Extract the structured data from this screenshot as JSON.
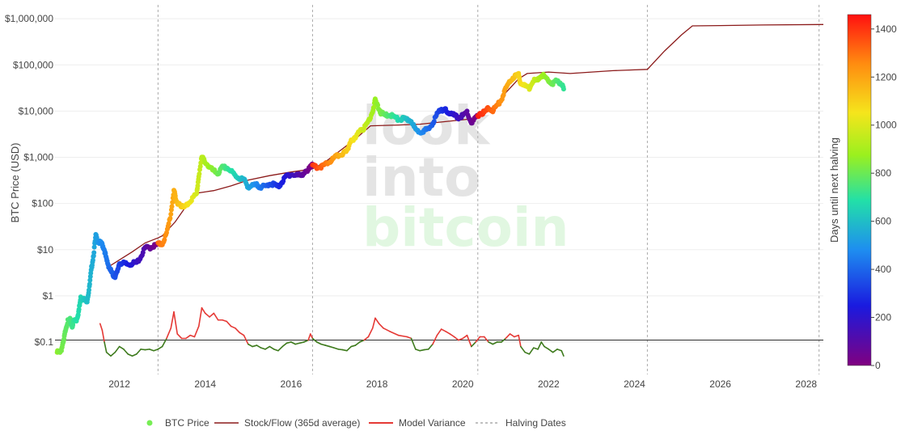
{
  "watermark": {
    "line1": "look",
    "line2": "into",
    "line3": "bitcoin"
  },
  "legend": {
    "btc_price": "BTC Price",
    "stock_flow": "Stock/Flow (365d average)",
    "model_variance": "Model Variance",
    "halving_dates": "Halving Dates"
  },
  "colorbar": {
    "title": "Days until next halving",
    "ticks": [
      "0",
      "200",
      "400",
      "600",
      "800",
      "1000",
      "1200",
      "1400"
    ]
  },
  "colors": {
    "stock_flow": "#8b1a1a",
    "variance_high": "#e53935",
    "variance_low": "#3d7a1c",
    "btc_legend": "#77ee55",
    "halving": "#aaaaaa",
    "reference_line": "#222222"
  },
  "chart_data": {
    "type": "scatter",
    "yscale": "log",
    "ylabel": "BTC Price (USD)",
    "xlim": [
      2010.5,
      2028.4
    ],
    "ylim_log10": [
      -1.7,
      6.3
    ],
    "y_ticks": [
      {
        "value": 0.1,
        "label": "$0.1"
      },
      {
        "value": 1,
        "label": "$1"
      },
      {
        "value": 10,
        "label": "$10"
      },
      {
        "value": 100,
        "label": "$100"
      },
      {
        "value": 1000,
        "label": "$1,000"
      },
      {
        "value": 10000,
        "label": "$10,000"
      },
      {
        "value": 100000,
        "label": "$100,000"
      },
      {
        "value": 1000000,
        "label": "$1,000,000"
      }
    ],
    "x_ticks": [
      {
        "value": 2012,
        "label": "2012"
      },
      {
        "value": 2014,
        "label": "2014"
      },
      {
        "value": 2016,
        "label": "2016"
      },
      {
        "value": 2018,
        "label": "2018"
      },
      {
        "value": 2020,
        "label": "2020"
      },
      {
        "value": 2022,
        "label": "2022"
      },
      {
        "value": 2024,
        "label": "2024"
      },
      {
        "value": 2026,
        "label": "2026"
      },
      {
        "value": 2028,
        "label": "2028"
      }
    ],
    "halving_dates": [
      2012.9,
      2016.5,
      2020.35,
      2024.3,
      2028.3
    ],
    "reference_level": 0.11,
    "btc_price": [
      [
        2010.55,
        0.06
      ],
      [
        2010.6,
        0.06
      ],
      [
        2010.65,
        0.07
      ],
      [
        2010.7,
        0.1
      ],
      [
        2010.75,
        0.2
      ],
      [
        2010.8,
        0.28
      ],
      [
        2010.85,
        0.3
      ],
      [
        2010.9,
        0.22
      ],
      [
        2010.95,
        0.3
      ],
      [
        2011.0,
        0.3
      ],
      [
        2011.05,
        0.45
      ],
      [
        2011.1,
        0.9
      ],
      [
        2011.15,
        0.9
      ],
      [
        2011.2,
        0.8
      ],
      [
        2011.25,
        0.8
      ],
      [
        2011.3,
        1.5
      ],
      [
        2011.35,
        4
      ],
      [
        2011.4,
        8
      ],
      [
        2011.45,
        20
      ],
      [
        2011.5,
        15
      ],
      [
        2011.55,
        14
      ],
      [
        2011.6,
        13
      ],
      [
        2011.65,
        10
      ],
      [
        2011.7,
        6
      ],
      [
        2011.75,
        4.5
      ],
      [
        2011.8,
        3.5
      ],
      [
        2011.85,
        2.8
      ],
      [
        2011.9,
        2.7
      ],
      [
        2011.95,
        3.2
      ],
      [
        2012.0,
        5.2
      ],
      [
        2012.1,
        5
      ],
      [
        2012.2,
        4.8
      ],
      [
        2012.3,
        5
      ],
      [
        2012.4,
        5.2
      ],
      [
        2012.5,
        7
      ],
      [
        2012.6,
        11
      ],
      [
        2012.7,
        11
      ],
      [
        2012.8,
        12
      ],
      [
        2012.9,
        13
      ],
      [
        2013.0,
        13.5
      ],
      [
        2013.1,
        22
      ],
      [
        2013.2,
        60
      ],
      [
        2013.27,
        200
      ],
      [
        2013.32,
        110
      ],
      [
        2013.4,
        100
      ],
      [
        2013.5,
        80
      ],
      [
        2013.6,
        100
      ],
      [
        2013.7,
        130
      ],
      [
        2013.8,
        160
      ],
      [
        2013.85,
        400
      ],
      [
        2013.92,
        1000
      ],
      [
        2014.0,
        800
      ],
      [
        2014.1,
        600
      ],
      [
        2014.2,
        500
      ],
      [
        2014.3,
        450
      ],
      [
        2014.4,
        600
      ],
      [
        2014.5,
        600
      ],
      [
        2014.6,
        500
      ],
      [
        2014.7,
        400
      ],
      [
        2014.8,
        350
      ],
      [
        2014.9,
        330
      ],
      [
        2015.0,
        230
      ],
      [
        2015.1,
        240
      ],
      [
        2015.2,
        250
      ],
      [
        2015.3,
        230
      ],
      [
        2015.4,
        230
      ],
      [
        2015.5,
        270
      ],
      [
        2015.6,
        260
      ],
      [
        2015.7,
        230
      ],
      [
        2015.8,
        300
      ],
      [
        2015.9,
        400
      ],
      [
        2016.0,
        430
      ],
      [
        2016.1,
        400
      ],
      [
        2016.2,
        420
      ],
      [
        2016.3,
        450
      ],
      [
        2016.4,
        500
      ],
      [
        2016.45,
        700
      ],
      [
        2016.5,
        650
      ],
      [
        2016.6,
        600
      ],
      [
        2016.7,
        610
      ],
      [
        2016.8,
        700
      ],
      [
        2016.9,
        800
      ],
      [
        2017.0,
        950
      ],
      [
        2017.1,
        1100
      ],
      [
        2017.2,
        1200
      ],
      [
        2017.3,
        1300
      ],
      [
        2017.4,
        2500
      ],
      [
        2017.5,
        2500
      ],
      [
        2017.6,
        4000
      ],
      [
        2017.7,
        4200
      ],
      [
        2017.8,
        6000
      ],
      [
        2017.9,
        10000
      ],
      [
        2017.96,
        17000
      ],
      [
        2018.05,
        11000
      ],
      [
        2018.1,
        9000
      ],
      [
        2018.2,
        8000
      ],
      [
        2018.3,
        8500
      ],
      [
        2018.4,
        7500
      ],
      [
        2018.5,
        6500
      ],
      [
        2018.6,
        6800
      ],
      [
        2018.7,
        6500
      ],
      [
        2018.8,
        6300
      ],
      [
        2018.9,
        3800
      ],
      [
        2019.0,
        3600
      ],
      [
        2019.1,
        3800
      ],
      [
        2019.2,
        4000
      ],
      [
        2019.3,
        5500
      ],
      [
        2019.4,
        8500
      ],
      [
        2019.5,
        11500
      ],
      [
        2019.55,
        10000
      ],
      [
        2019.6,
        10500
      ],
      [
        2019.7,
        9000
      ],
      [
        2019.8,
        8000
      ],
      [
        2019.9,
        7200
      ],
      [
        2020.0,
        8000
      ],
      [
        2020.1,
        9500
      ],
      [
        2020.2,
        5500
      ],
      [
        2020.3,
        7000
      ],
      [
        2020.4,
        9000
      ],
      [
        2020.5,
        9300
      ],
      [
        2020.6,
        11500
      ],
      [
        2020.7,
        10500
      ],
      [
        2020.8,
        13000
      ],
      [
        2020.9,
        18000
      ],
      [
        2021.0,
        30000
      ],
      [
        2021.1,
        45000
      ],
      [
        2021.2,
        57000
      ],
      [
        2021.3,
        60000
      ],
      [
        2021.35,
        40000
      ],
      [
        2021.45,
        35000
      ],
      [
        2021.55,
        32000
      ],
      [
        2021.65,
        48000
      ],
      [
        2021.75,
        45000
      ],
      [
        2021.83,
        62000
      ],
      [
        2021.9,
        55000
      ],
      [
        2022.0,
        45000
      ],
      [
        2022.1,
        40000
      ],
      [
        2022.2,
        45000
      ],
      [
        2022.3,
        40000
      ],
      [
        2022.35,
        30000
      ]
    ],
    "stock_flow": [
      [
        2011.7,
        4
      ],
      [
        2012.0,
        6
      ],
      [
        2012.3,
        9
      ],
      [
        2012.6,
        14
      ],
      [
        2012.9,
        18
      ],
      [
        2013.0,
        20
      ],
      [
        2013.3,
        40
      ],
      [
        2013.6,
        100
      ],
      [
        2013.85,
        170
      ],
      [
        2014.2,
        190
      ],
      [
        2014.6,
        240
      ],
      [
        2015.0,
        320
      ],
      [
        2015.5,
        400
      ],
      [
        2016.0,
        480
      ],
      [
        2016.5,
        560
      ],
      [
        2016.8,
        800
      ],
      [
        2017.1,
        1300
      ],
      [
        2017.5,
        2500
      ],
      [
        2017.85,
        4800
      ],
      [
        2018.5,
        5000
      ],
      [
        2019.0,
        5200
      ],
      [
        2019.5,
        5800
      ],
      [
        2020.0,
        6500
      ],
      [
        2020.35,
        7000
      ],
      [
        2020.7,
        12000
      ],
      [
        2021.0,
        25000
      ],
      [
        2021.3,
        50000
      ],
      [
        2021.5,
        65000
      ],
      [
        2022.0,
        70000
      ],
      [
        2022.5,
        65000
      ],
      [
        2023.0,
        70000
      ],
      [
        2023.5,
        75000
      ],
      [
        2024.0,
        78000
      ],
      [
        2024.3,
        80000
      ],
      [
        2024.7,
        200000
      ],
      [
        2025.1,
        450000
      ],
      [
        2025.35,
        700000
      ],
      [
        2026.0,
        710000
      ],
      [
        2027.0,
        730000
      ],
      [
        2028.4,
        750000
      ]
    ],
    "model_variance": [
      [
        2011.55,
        0.25
      ],
      [
        2011.6,
        0.18
      ],
      [
        2011.65,
        0.1
      ],
      [
        2011.7,
        0.06
      ],
      [
        2011.8,
        0.05
      ],
      [
        2011.9,
        0.06
      ],
      [
        2012.0,
        0.08
      ],
      [
        2012.1,
        0.07
      ],
      [
        2012.2,
        0.055
      ],
      [
        2012.3,
        0.05
      ],
      [
        2012.4,
        0.055
      ],
      [
        2012.5,
        0.07
      ],
      [
        2012.6,
        0.068
      ],
      [
        2012.7,
        0.07
      ],
      [
        2012.8,
        0.065
      ],
      [
        2012.9,
        0.07
      ],
      [
        2013.0,
        0.08
      ],
      [
        2013.1,
        0.12
      ],
      [
        2013.2,
        0.2
      ],
      [
        2013.27,
        0.45
      ],
      [
        2013.35,
        0.15
      ],
      [
        2013.45,
        0.12
      ],
      [
        2013.55,
        0.12
      ],
      [
        2013.65,
        0.14
      ],
      [
        2013.75,
        0.13
      ],
      [
        2013.85,
        0.22
      ],
      [
        2013.92,
        0.55
      ],
      [
        2014.0,
        0.42
      ],
      [
        2014.1,
        0.35
      ],
      [
        2014.2,
        0.42
      ],
      [
        2014.3,
        0.3
      ],
      [
        2014.4,
        0.3
      ],
      [
        2014.5,
        0.28
      ],
      [
        2014.6,
        0.22
      ],
      [
        2014.7,
        0.2
      ],
      [
        2014.8,
        0.16
      ],
      [
        2014.9,
        0.14
      ],
      [
        2015.0,
        0.09
      ],
      [
        2015.1,
        0.08
      ],
      [
        2015.2,
        0.085
      ],
      [
        2015.3,
        0.075
      ],
      [
        2015.4,
        0.07
      ],
      [
        2015.5,
        0.08
      ],
      [
        2015.6,
        0.07
      ],
      [
        2015.7,
        0.065
      ],
      [
        2015.8,
        0.08
      ],
      [
        2015.9,
        0.095
      ],
      [
        2016.0,
        0.1
      ],
      [
        2016.1,
        0.09
      ],
      [
        2016.2,
        0.095
      ],
      [
        2016.3,
        0.1
      ],
      [
        2016.4,
        0.11
      ],
      [
        2016.45,
        0.15
      ],
      [
        2016.5,
        0.12
      ],
      [
        2016.6,
        0.1
      ],
      [
        2016.7,
        0.09
      ],
      [
        2016.8,
        0.085
      ],
      [
        2016.9,
        0.08
      ],
      [
        2017.0,
        0.075
      ],
      [
        2017.1,
        0.07
      ],
      [
        2017.2,
        0.068
      ],
      [
        2017.3,
        0.065
      ],
      [
        2017.4,
        0.08
      ],
      [
        2017.5,
        0.085
      ],
      [
        2017.6,
        0.1
      ],
      [
        2017.7,
        0.11
      ],
      [
        2017.8,
        0.13
      ],
      [
        2017.9,
        0.2
      ],
      [
        2017.96,
        0.33
      ],
      [
        2018.05,
        0.25
      ],
      [
        2018.15,
        0.2
      ],
      [
        2018.3,
        0.17
      ],
      [
        2018.5,
        0.14
      ],
      [
        2018.7,
        0.13
      ],
      [
        2018.8,
        0.12
      ],
      [
        2018.9,
        0.07
      ],
      [
        2019.0,
        0.065
      ],
      [
        2019.1,
        0.068
      ],
      [
        2019.2,
        0.07
      ],
      [
        2019.3,
        0.09
      ],
      [
        2019.4,
        0.14
      ],
      [
        2019.5,
        0.19
      ],
      [
        2019.6,
        0.17
      ],
      [
        2019.7,
        0.15
      ],
      [
        2019.8,
        0.13
      ],
      [
        2019.9,
        0.11
      ],
      [
        2020.0,
        0.12
      ],
      [
        2020.1,
        0.14
      ],
      [
        2020.2,
        0.08
      ],
      [
        2020.3,
        0.1
      ],
      [
        2020.4,
        0.13
      ],
      [
        2020.5,
        0.13
      ],
      [
        2020.6,
        0.1
      ],
      [
        2020.7,
        0.09
      ],
      [
        2020.8,
        0.1
      ],
      [
        2020.9,
        0.1
      ],
      [
        2021.0,
        0.12
      ],
      [
        2021.1,
        0.15
      ],
      [
        2021.2,
        0.13
      ],
      [
        2021.3,
        0.14
      ],
      [
        2021.35,
        0.08
      ],
      [
        2021.45,
        0.06
      ],
      [
        2021.55,
        0.055
      ],
      [
        2021.65,
        0.075
      ],
      [
        2021.75,
        0.07
      ],
      [
        2021.83,
        0.1
      ],
      [
        2021.9,
        0.08
      ],
      [
        2022.0,
        0.07
      ],
      [
        2022.1,
        0.06
      ],
      [
        2022.2,
        0.07
      ],
      [
        2022.3,
        0.065
      ],
      [
        2022.35,
        0.05
      ]
    ]
  }
}
